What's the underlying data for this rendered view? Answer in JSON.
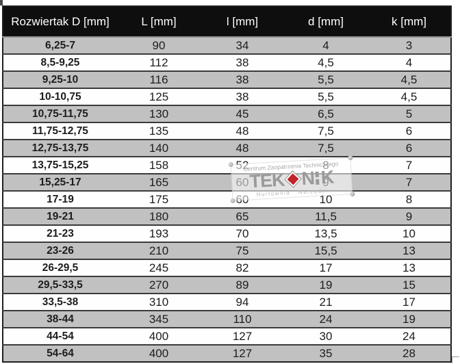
{
  "chart_data": {
    "type": "table",
    "columns": [
      "Rozwiertak D [mm]",
      "L [mm]",
      "l [mm]",
      "d [mm]",
      "k [mm]"
    ],
    "rows": [
      [
        "6,25-7",
        "90",
        "34",
        "4",
        "3"
      ],
      [
        "8,5-9,25",
        "112",
        "38",
        "4,5",
        "4"
      ],
      [
        "9,25-10",
        "116",
        "38",
        "5,5",
        "4,5"
      ],
      [
        "10-10,75",
        "125",
        "38",
        "5,5",
        "4,5"
      ],
      [
        "10,75-11,75",
        "130",
        "45",
        "6,5",
        "5"
      ],
      [
        "11,75-12,75",
        "135",
        "48",
        "7,5",
        "6"
      ],
      [
        "12,75-13,75",
        "140",
        "48",
        "7,5",
        "6"
      ],
      [
        "13,75-15,25",
        "158",
        "52",
        "8",
        "7"
      ],
      [
        "15,25-17",
        "165",
        "60",
        "9",
        "7"
      ],
      [
        "17-19",
        "175",
        "60",
        "10",
        "8"
      ],
      [
        "19-21",
        "180",
        "65",
        "11,5",
        "9"
      ],
      [
        "21-23",
        "193",
        "70",
        "13,5",
        "10"
      ],
      [
        "23-26",
        "210",
        "75",
        "15,5",
        "13"
      ],
      [
        "26-29,5",
        "245",
        "82",
        "17",
        "13"
      ],
      [
        "29,5-33,5",
        "270",
        "89",
        "19",
        "15"
      ],
      [
        "33,5-38",
        "310",
        "94",
        "21",
        "17"
      ],
      [
        "38-44",
        "345",
        "110",
        "24",
        "19"
      ],
      [
        "44-54",
        "400",
        "127",
        "30",
        "24"
      ],
      [
        "54-64",
        "400",
        "127",
        "35",
        "28"
      ]
    ],
    "layout": {
      "striped": true,
      "stripe_color": "#c1c1c1",
      "header_bg": "#0e0e0e",
      "header_text_color": "#ffffff"
    }
  },
  "watermark": {
    "line1": "Centrum Zaopatrzenia Technicznego",
    "logo_part1": "TEK",
    "logo_part2": "N",
    "logo_part3": "K",
    "line2": "Hurtownia Narzędzi",
    "diamond_color": "#c2242b",
    "logo_color": "#9a9a9a"
  },
  "colors": {
    "header_bg": "#0e0e0e",
    "header_text": "#ffffff",
    "row_alt_bg": "#c1c1c1",
    "row_bg": "#fefefe",
    "row_separator": "#3a3a3a",
    "cell_text": "#1c1c1c",
    "outer_border": "#1f1f1f"
  }
}
